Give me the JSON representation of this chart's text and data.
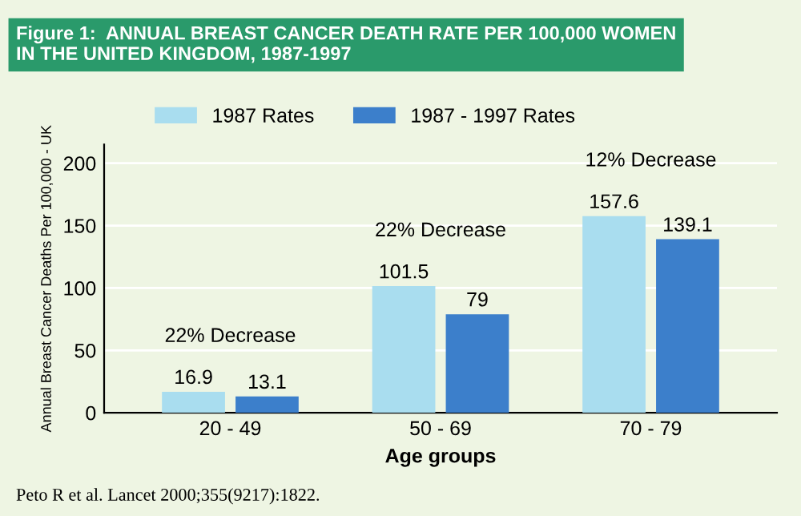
{
  "chart_data": {
    "type": "bar",
    "title": "Figure 1:  ANNUAL BREAST CANCER DEATH RATE PER 100,000 WOMEN\nIN THE UNITED KINGDOM, 1987-1997",
    "xlabel": "Age groups",
    "ylabel": "Annual Breast Cancer Deaths Per 100,000 - UK",
    "categories": [
      "20 - 49",
      "50 - 69",
      "70 - 79"
    ],
    "series": [
      {
        "name": "1987 Rates",
        "color": "#a9ddef",
        "values": [
          16.9,
          101.5,
          157.6
        ]
      },
      {
        "name": "1987 - 1997 Rates",
        "color": "#3c7fcb",
        "values": [
          13.1,
          79,
          139.1
        ]
      }
    ],
    "ylim": [
      0,
      215
    ],
    "yticks": [
      0,
      50,
      100,
      150,
      200
    ],
    "grid": "y",
    "legend": "top",
    "data_labels": true,
    "annotations": [
      "22% Decrease",
      "22% Decrease",
      "12% Decrease",
      "Peto R et al. Lancet 2000;355(9217):1822."
    ]
  }
}
